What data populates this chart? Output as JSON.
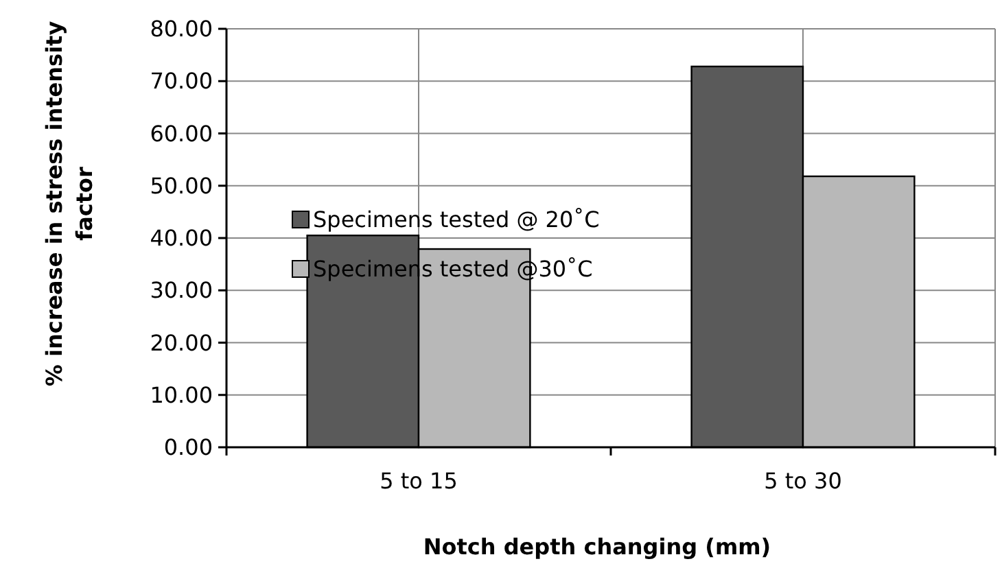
{
  "chart_data": {
    "type": "bar",
    "xlabel": "Notch depth changing (mm)",
    "ylabel": "% increase in stress intensity factor",
    "categories": [
      "5 to 15",
      "5 to 30"
    ],
    "series": [
      {
        "name": "Specimens tested @ 20˚C",
        "color": "#5a5a5a",
        "values": [
          40.5,
          72.8
        ]
      },
      {
        "name": "Specimens tested @30˚C",
        "color": "#b8b8b8",
        "values": [
          37.9,
          51.8
        ]
      }
    ],
    "ylim": [
      0,
      80
    ],
    "yticks": [
      {
        "value": 0,
        "label": "0.00"
      },
      {
        "value": 10,
        "label": "10.00"
      },
      {
        "value": 20,
        "label": "20.00"
      },
      {
        "value": 30,
        "label": "30.00"
      },
      {
        "value": 40,
        "label": "40.00"
      },
      {
        "value": 50,
        "label": "50.00"
      },
      {
        "value": 60,
        "label": "60.00"
      },
      {
        "value": 70,
        "label": "70.00"
      },
      {
        "value": 80,
        "label": "80.00"
      }
    ],
    "grid": true,
    "legend": "left"
  }
}
